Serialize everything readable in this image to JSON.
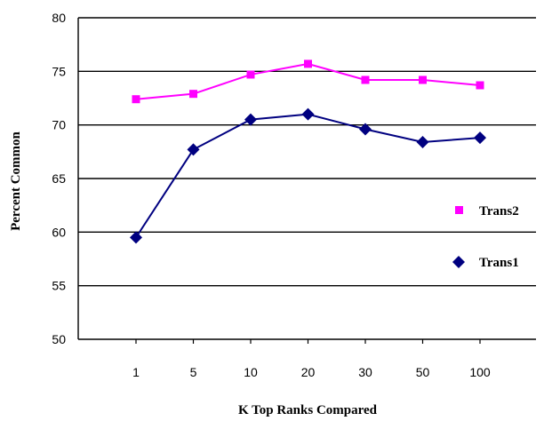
{
  "chart_data": {
    "type": "line",
    "categories": [
      "1",
      "5",
      "10",
      "20",
      "30",
      "50",
      "100"
    ],
    "series": [
      {
        "name": "Trans2",
        "values": [
          72.4,
          72.9,
          74.7,
          75.7,
          74.2,
          74.2,
          73.7
        ],
        "color": "#ff00ff",
        "marker": "square"
      },
      {
        "name": "Trans1",
        "values": [
          59.5,
          67.7,
          70.5,
          71.0,
          69.6,
          68.4,
          68.8
        ],
        "color": "#000080",
        "marker": "diamond"
      }
    ],
    "title": "",
    "xlabel": "K Top Ranks Compared",
    "ylabel": "Percent Common",
    "ylim": [
      50,
      80
    ],
    "yticks": [
      "50",
      "55",
      "60",
      "65",
      "70",
      "75",
      "80"
    ],
    "grid": "horizontal",
    "legend_position": "right"
  }
}
